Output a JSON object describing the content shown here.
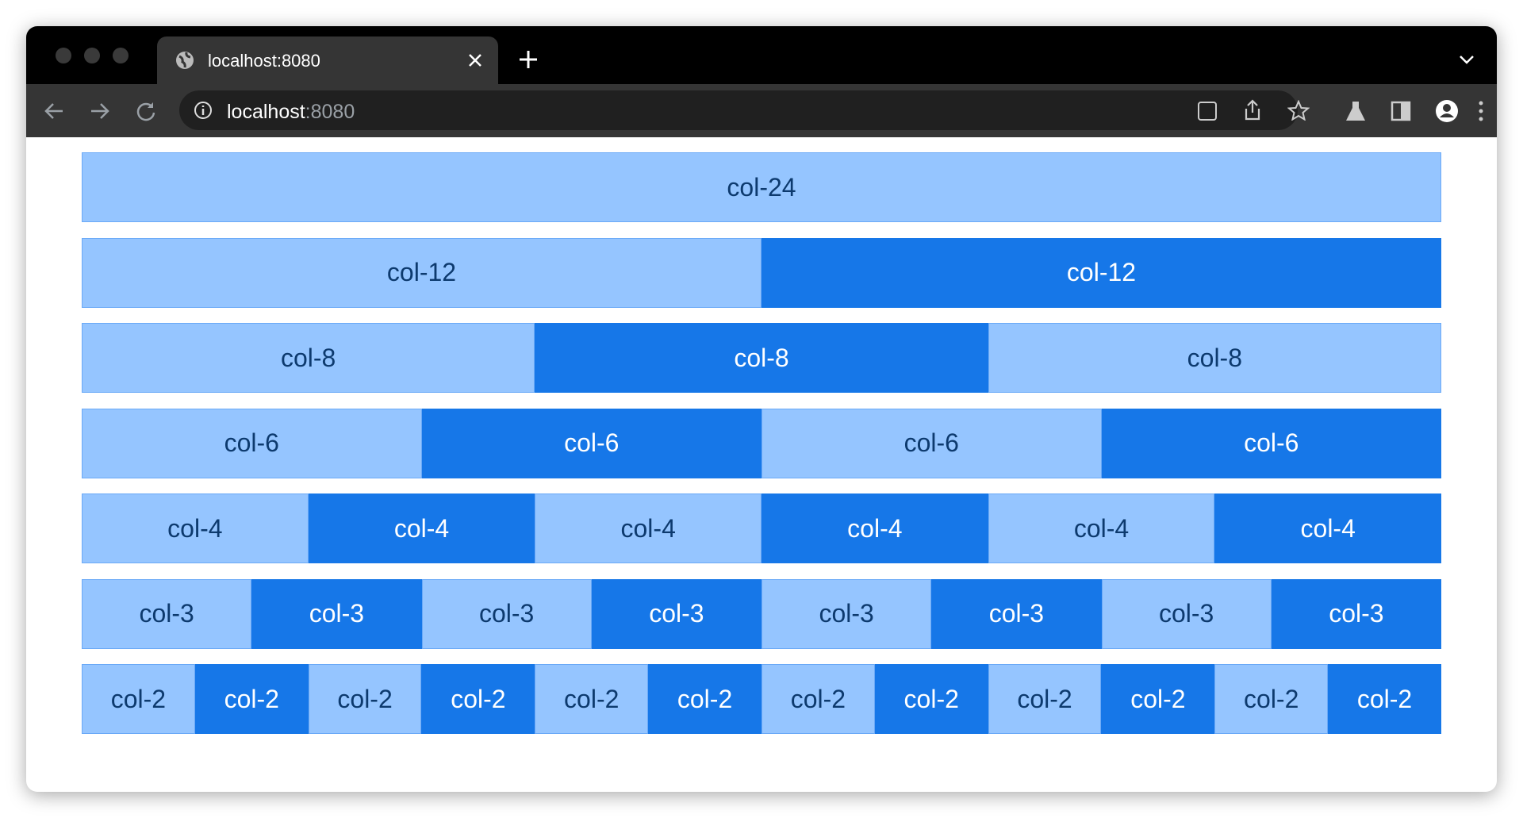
{
  "browser": {
    "tab_title": "localhost:8080",
    "url_host": "localhost",
    "url_port": ":8080"
  },
  "grid": {
    "rows": [
      {
        "cells": [
          "col-24"
        ]
      },
      {
        "cells": [
          "col-12",
          "col-12"
        ]
      },
      {
        "cells": [
          "col-8",
          "col-8",
          "col-8"
        ]
      },
      {
        "cells": [
          "col-6",
          "col-6",
          "col-6",
          "col-6"
        ]
      },
      {
        "cells": [
          "col-4",
          "col-4",
          "col-4",
          "col-4",
          "col-4",
          "col-4"
        ]
      },
      {
        "cells": [
          "col-3",
          "col-3",
          "col-3",
          "col-3",
          "col-3",
          "col-3",
          "col-3",
          "col-3"
        ]
      },
      {
        "cells": [
          "col-2",
          "col-2",
          "col-2",
          "col-2",
          "col-2",
          "col-2",
          "col-2",
          "col-2",
          "col-2",
          "col-2",
          "col-2",
          "col-2"
        ]
      }
    ]
  }
}
